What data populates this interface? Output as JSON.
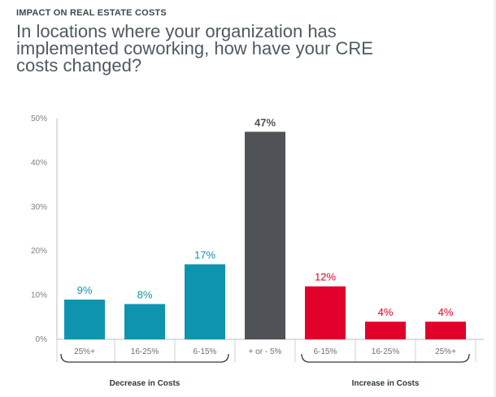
{
  "header": {
    "kicker": "IMPACT ON REAL ESTATE COSTS",
    "title": "In locations where your organization has implemented coworking, how have your CRE costs changed?"
  },
  "chart_data": {
    "type": "bar",
    "categories": [
      "25%+",
      "16-25%",
      "6-15%",
      "+ or - 5%",
      "6-15%",
      "16-25%",
      "25%+"
    ],
    "values": [
      9,
      8,
      17,
      47,
      12,
      4,
      4
    ],
    "value_labels": [
      "9%",
      "8%",
      "17%",
      "47%",
      "12%",
      "4%",
      "4%"
    ],
    "colors": [
      "#0f94b0",
      "#0f94b0",
      "#0f94b0",
      "#4f5357",
      "#e0002a",
      "#e0002a",
      "#e0002a"
    ],
    "ylim": [
      0,
      50
    ],
    "yticks": [
      0,
      10,
      20,
      30,
      40,
      50
    ],
    "ytick_labels": [
      "0%",
      "10%",
      "20%",
      "30%",
      "40%",
      "50%"
    ],
    "grid": false,
    "groups": [
      {
        "label": "Decrease in Costs",
        "from": 0,
        "to": 2
      },
      {
        "label": "Increase in Costs",
        "from": 4,
        "to": 6
      }
    ]
  }
}
